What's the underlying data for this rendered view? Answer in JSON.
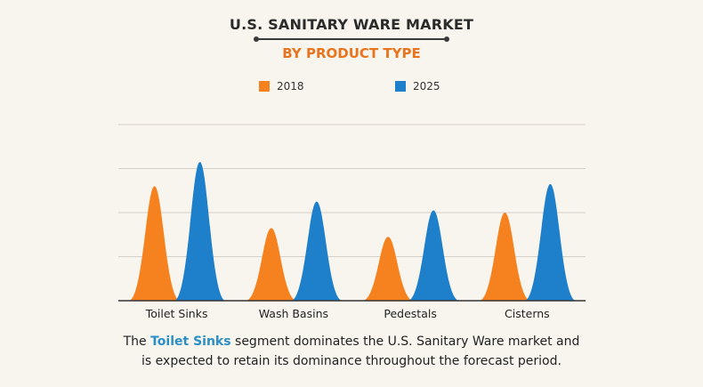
{
  "title": "U.S. SANITARY WARE MARKET",
  "subtitle": "BY PRODUCT TYPE",
  "caption": {
    "prefix": "The ",
    "highlight": "Toilet Sinks",
    "line1_rest": " segment dominates the U.S. Sanitary Ware market and",
    "line2": "is expected to retain its dominance throughout the forecast period."
  },
  "colors": {
    "s2018": "#f5821f",
    "s2025": "#1e7fcb",
    "title": "#2b2b2b",
    "subtitle": "#e8741e",
    "highlight": "#2a8fc6",
    "grid": "#d3d0c8",
    "axis": "#333333"
  },
  "chart_data": {
    "type": "area",
    "categories": [
      "Toilet Sinks",
      "Wash Basins",
      "Pedestals",
      "Cisterns"
    ],
    "series": [
      {
        "name": "2018",
        "values": [
          2.6,
          1.65,
          1.45,
          2.0
        ]
      },
      {
        "name": "2025",
        "values": [
          3.15,
          2.25,
          2.05,
          2.65
        ]
      }
    ],
    "ylim": [
      0,
      4
    ],
    "grid": true,
    "legend": "top-center",
    "xlabel": "",
    "ylabel": ""
  }
}
